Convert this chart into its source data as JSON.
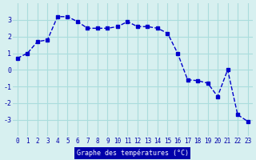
{
  "hours": [
    0,
    1,
    2,
    3,
    4,
    5,
    6,
    7,
    8,
    9,
    10,
    11,
    12,
    13,
    14,
    15,
    16,
    17,
    18,
    19,
    20,
    21,
    22,
    23
  ],
  "temps": [
    0.7,
    1.0,
    1.7,
    1.8,
    3.2,
    3.2,
    2.9,
    2.5,
    2.5,
    2.5,
    2.6,
    2.9,
    2.6,
    2.6,
    2.5,
    2.2,
    1.0,
    -0.6,
    -0.65,
    -0.8,
    -1.6,
    0.0,
    -2.7,
    -3.1
  ],
  "line_color": "#0000cc",
  "marker": "s",
  "marker_size": 3,
  "bg_color": "#d7f0f0",
  "grid_color": "#aadddd",
  "axis_label_color": "#0000aa",
  "tick_label_color": "#0000aa",
  "xlabel": "Graphe des températures (°C)",
  "xlabel_bg": "#0000aa",
  "xlabel_fg": "#ffffff",
  "ylim": [
    -4,
    4
  ],
  "yticks": [
    -3,
    -2,
    -1,
    0,
    1,
    2,
    3
  ],
  "xlim": [
    -0.5,
    23.5
  ]
}
